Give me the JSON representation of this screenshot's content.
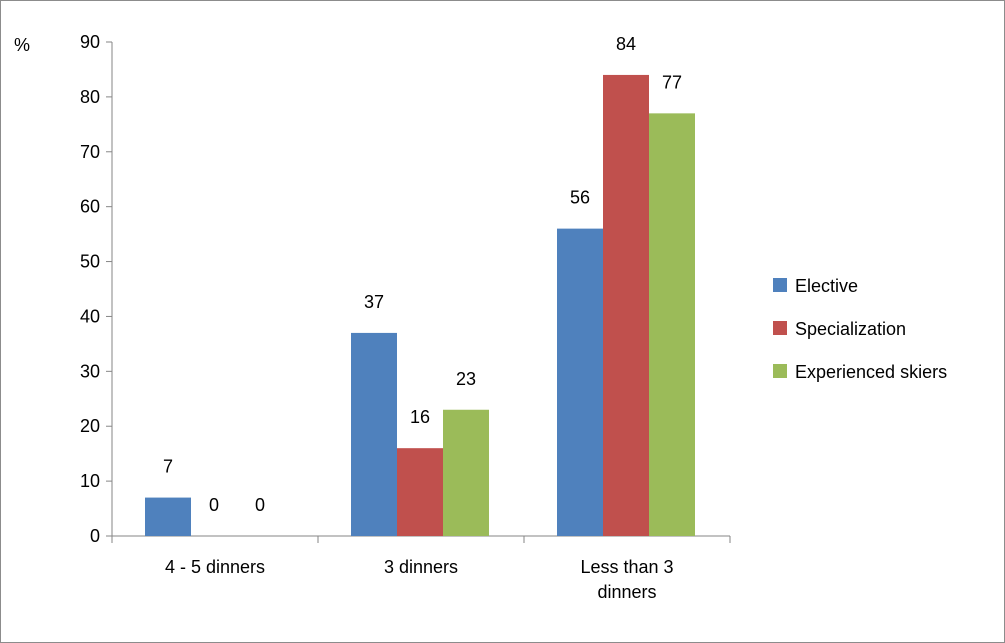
{
  "chart_data": {
    "type": "bar",
    "title": "",
    "xlabel": "",
    "ylabel": "%",
    "ylim": [
      0,
      90
    ],
    "ytick_step": 10,
    "categories": [
      "4 - 5 dinners",
      "3 dinners",
      "Less than 3 dinners"
    ],
    "category_label_lines": [
      [
        "4 - 5 dinners"
      ],
      [
        "3 dinners"
      ],
      [
        "Less than 3",
        "dinners"
      ]
    ],
    "series": [
      {
        "name": "Elective",
        "values": [
          7,
          37,
          56
        ],
        "color": "#4f81bd"
      },
      {
        "name": "Specialization",
        "values": [
          0,
          16,
          84
        ],
        "color": "#c0504d"
      },
      {
        "name": "Experienced skiers",
        "values": [
          0,
          23,
          77
        ],
        "color": "#9bbb59"
      }
    ],
    "data_labels": true,
    "grid": false,
    "legend_position": "right"
  }
}
